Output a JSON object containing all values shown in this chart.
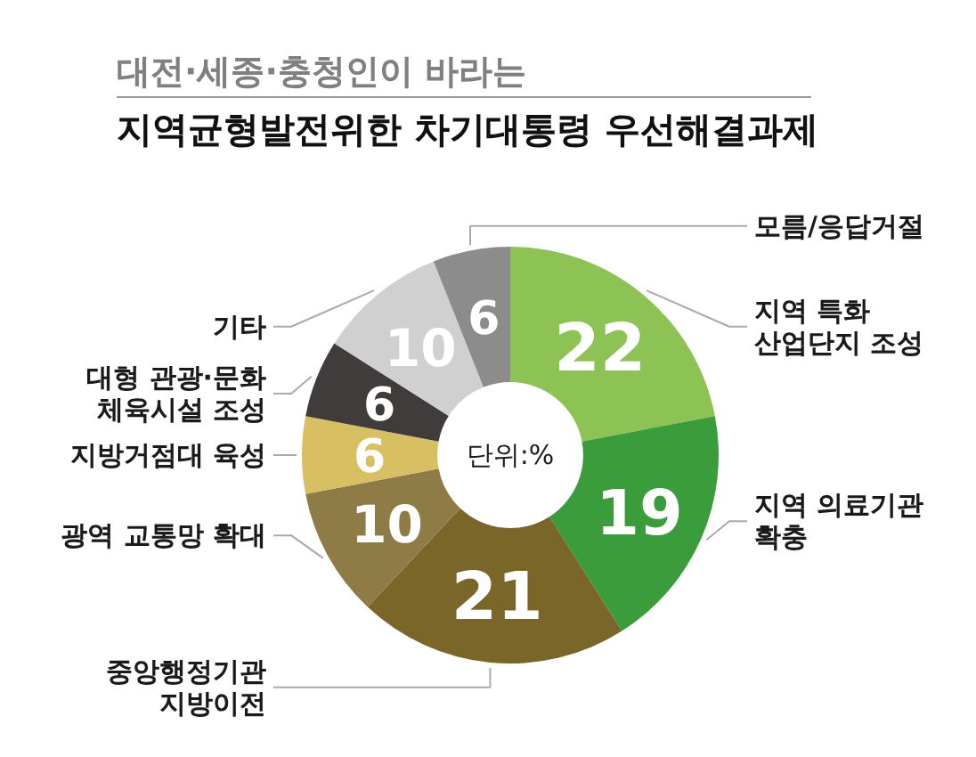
{
  "chart_data": {
    "type": "donut",
    "title": "대전·세종·충청인이 바라는",
    "subtitle": "지역균형발전위한 차기대통령 우선해결과제",
    "categories": [
      "지역 특화\n산업단지 조성",
      "지역 의료기관\n확충",
      "중앙행정기관\n지방이전",
      "광역 교통망 확대",
      "지방거점대 육성",
      "대형 관광·문화\n체육시설 조성",
      "기타",
      "모름/응답거절"
    ],
    "values": [
      22,
      19,
      21,
      10,
      6,
      6,
      10,
      6
    ],
    "colors": [
      "#8dc255",
      "#3b9c3c",
      "#7a6628",
      "#8e7b45",
      "#d9bf63",
      "#403c3b",
      "#d0d0d0",
      "#8c8c8c"
    ],
    "data_labels": true,
    "annotations": [
      "단위:%"
    ]
  }
}
